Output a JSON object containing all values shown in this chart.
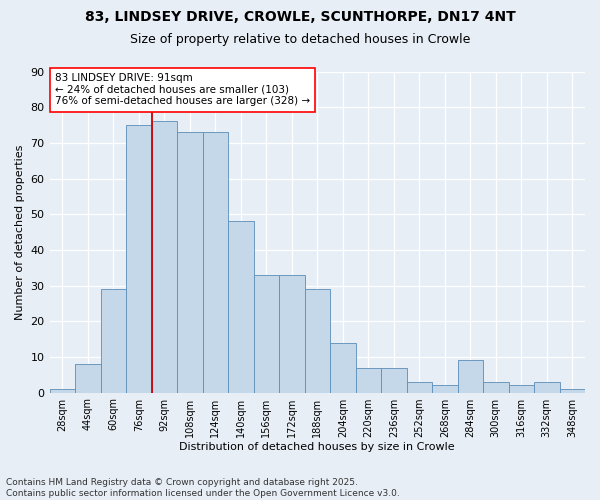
{
  "title_line1": "83, LINDSEY DRIVE, CROWLE, SCUNTHORPE, DN17 4NT",
  "title_line2": "Size of property relative to detached houses in Crowle",
  "xlabel": "Distribution of detached houses by size in Crowle",
  "ylabel": "Number of detached properties",
  "bins": [
    "28sqm",
    "44sqm",
    "60sqm",
    "76sqm",
    "92sqm",
    "108sqm",
    "124sqm",
    "140sqm",
    "156sqm",
    "172sqm",
    "188sqm",
    "204sqm",
    "220sqm",
    "236sqm",
    "252sqm",
    "268sqm",
    "284sqm",
    "300sqm",
    "316sqm",
    "332sqm",
    "348sqm"
  ],
  "values": [
    1,
    8,
    29,
    75,
    76,
    73,
    73,
    48,
    33,
    33,
    29,
    14,
    7,
    7,
    3,
    2,
    9,
    3,
    2,
    3,
    1
  ],
  "bar_color": "#c5d8ea",
  "bar_edge_color": "#5b8db8",
  "vline_color": "#cc0000",
  "vline_position": 3.5,
  "annotation_text": "83 LINDSEY DRIVE: 91sqm\n← 24% of detached houses are smaller (103)\n76% of semi-detached houses are larger (328) →",
  "ylim_max": 90,
  "yticks": [
    0,
    10,
    20,
    30,
    40,
    50,
    60,
    70,
    80,
    90
  ],
  "bg_color": "#e8eef6",
  "footer": "Contains HM Land Registry data © Crown copyright and database right 2025.\nContains public sector information licensed under the Open Government Licence v3.0."
}
